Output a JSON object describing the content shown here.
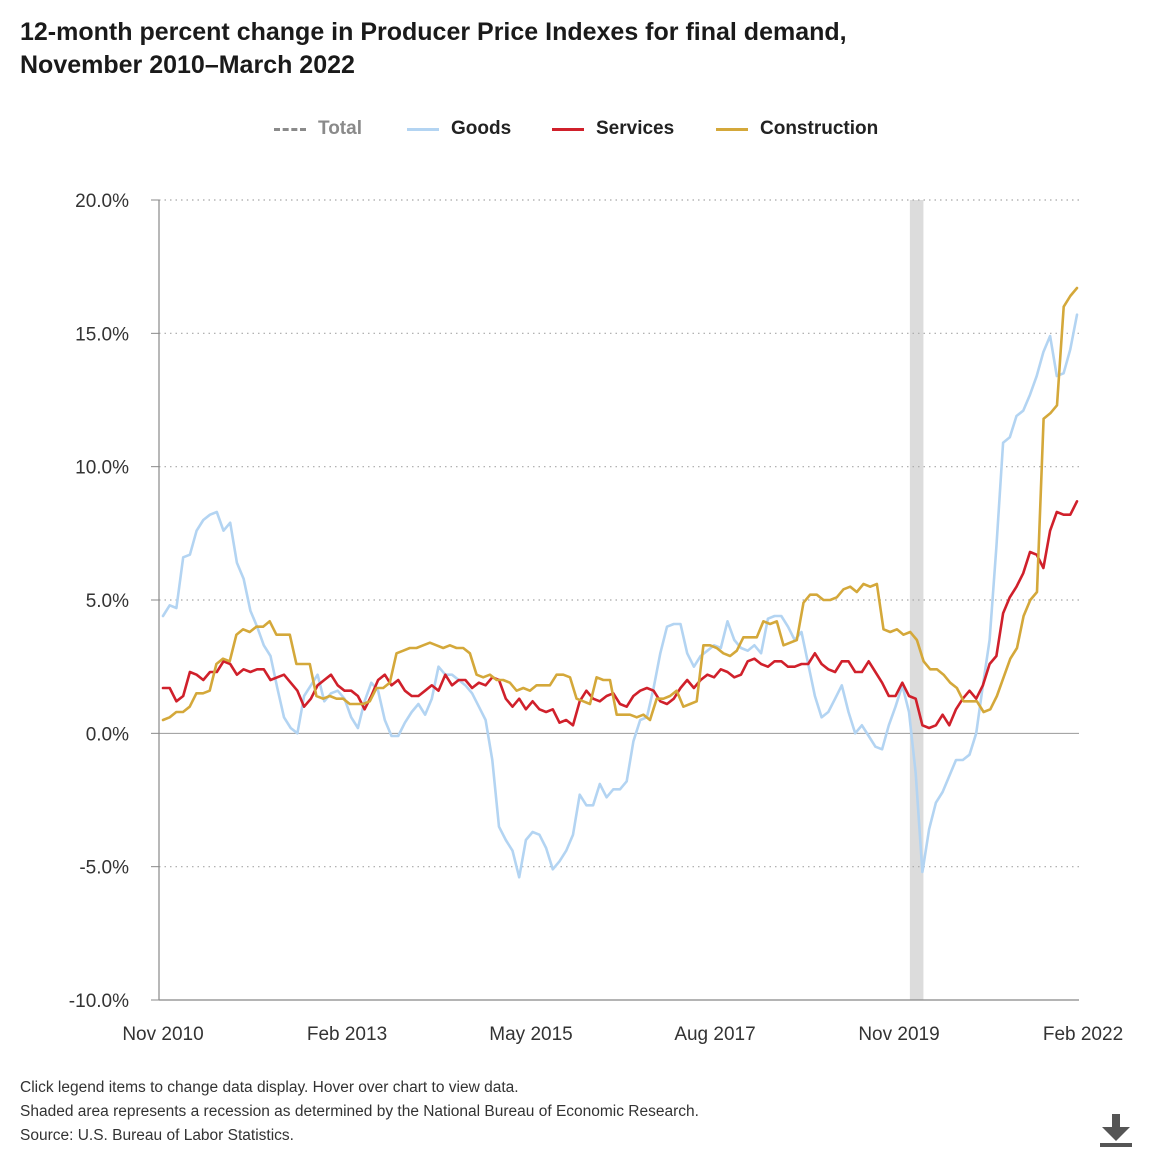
{
  "title_line1": "12-month percent change in Producer Price Indexes for final demand,",
  "title_line2": "November 2010–March 2022",
  "legend": [
    {
      "name": "Total",
      "color": "#8a8a8a",
      "dashed": true,
      "hidden": true
    },
    {
      "name": "Goods",
      "color": "#b3d4f2"
    },
    {
      "name": "Services",
      "color": "#d0202b"
    },
    {
      "name": "Construction",
      "color": "#d4a83a"
    }
  ],
  "notes": {
    "line1": "Click legend items to change data display. Hover over chart to view data.",
    "line2": "Shaded area represents a recession as determined by the National Bureau of Economic Research.",
    "line3": "Source: U.S. Bureau of Labor Statistics."
  },
  "icons": {
    "download": "download-icon"
  },
  "chart_data": {
    "type": "line",
    "x_start": "2010-11",
    "x_end": "2022-03",
    "x_ticks": [
      "Nov 2010",
      "Feb 2013",
      "May 2015",
      "Aug 2017",
      "Nov 2019",
      "Feb 2022"
    ],
    "y_ticks": [
      "20.0%",
      "15.0%",
      "10.0%",
      "5.0%",
      "0.0%",
      "-5.0%",
      "-10.0%"
    ],
    "ylim": [
      -10,
      20
    ],
    "grid": "horizontal dotted",
    "legend_position": "top",
    "recession": {
      "start": "2020-02",
      "end": "2020-04"
    },
    "series": [
      {
        "name": "Goods",
        "color": "#b3d4f2",
        "values": [
          4.4,
          4.8,
          4.7,
          6.6,
          6.7,
          7.6,
          8.0,
          8.2,
          8.3,
          7.6,
          7.9,
          6.4,
          5.8,
          4.6,
          4.0,
          3.3,
          2.9,
          1.7,
          0.6,
          0.2,
          0.0,
          1.4,
          1.8,
          2.2,
          1.2,
          1.5,
          1.6,
          1.3,
          0.6,
          0.2,
          1.2,
          1.9,
          1.6,
          0.5,
          -0.1,
          -0.1,
          0.4,
          0.8,
          1.1,
          0.7,
          1.3,
          2.5,
          2.2,
          2.2,
          2.0,
          1.8,
          1.5,
          1.0,
          0.5,
          -1.0,
          -3.5,
          -4.0,
          -4.4,
          -5.4,
          -4.0,
          -3.7,
          -3.8,
          -4.3,
          -5.1,
          -4.8,
          -4.4,
          -3.8,
          -2.3,
          -2.7,
          -2.7,
          -1.9,
          -2.4,
          -2.1,
          -2.1,
          -1.8,
          -0.3,
          0.5,
          0.6,
          1.7,
          3.0,
          4.0,
          4.1,
          4.1,
          3.0,
          2.5,
          2.9,
          3.1,
          3.3,
          3.2,
          4.2,
          3.5,
          3.2,
          3.1,
          3.3,
          3.0,
          4.3,
          4.4,
          4.4,
          4.0,
          3.5,
          3.8,
          2.6,
          1.4,
          0.6,
          0.8,
          1.3,
          1.8,
          0.8,
          0.0,
          0.3,
          -0.1,
          -0.5,
          -0.6,
          0.3,
          1.0,
          1.8,
          0.8,
          -1.5,
          -5.2,
          -3.6,
          -2.6,
          -2.2,
          -1.6,
          -1.0,
          -1.0,
          -0.8,
          0.0,
          1.8,
          3.5,
          7.0,
          10.9,
          11.1,
          11.9,
          12.1,
          12.7,
          13.4,
          14.3,
          14.9,
          13.4,
          13.5,
          14.4,
          15.7
        ]
      },
      {
        "name": "Services",
        "color": "#d0202b",
        "values": [
          1.7,
          1.7,
          1.2,
          1.4,
          2.3,
          2.2,
          2.0,
          2.3,
          2.3,
          2.7,
          2.6,
          2.2,
          2.4,
          2.3,
          2.4,
          2.4,
          2.0,
          2.1,
          2.2,
          1.9,
          1.6,
          1.0,
          1.3,
          1.8,
          2.0,
          2.2,
          1.8,
          1.6,
          1.6,
          1.4,
          0.9,
          1.4,
          2.0,
          2.2,
          1.8,
          2.0,
          1.6,
          1.4,
          1.4,
          1.6,
          1.8,
          1.6,
          2.2,
          1.8,
          2.0,
          2.0,
          1.7,
          1.9,
          1.8,
          2.1,
          2.0,
          1.3,
          1.0,
          1.3,
          0.9,
          1.2,
          0.9,
          0.8,
          0.9,
          0.4,
          0.5,
          0.3,
          1.2,
          1.6,
          1.3,
          1.2,
          1.4,
          1.5,
          1.1,
          1.0,
          1.4,
          1.6,
          1.7,
          1.6,
          1.2,
          1.1,
          1.3,
          1.7,
          2.0,
          1.7,
          2.0,
          2.2,
          2.1,
          2.4,
          2.3,
          2.1,
          2.2,
          2.7,
          2.8,
          2.6,
          2.5,
          2.7,
          2.7,
          2.5,
          2.5,
          2.6,
          2.6,
          3.0,
          2.6,
          2.4,
          2.3,
          2.7,
          2.7,
          2.3,
          2.3,
          2.7,
          2.3,
          1.9,
          1.4,
          1.4,
          1.9,
          1.4,
          1.3,
          0.3,
          0.2,
          0.3,
          0.7,
          0.3,
          0.9,
          1.3,
          1.6,
          1.3,
          1.8,
          2.6,
          2.9,
          4.5,
          5.1,
          5.5,
          6.0,
          6.8,
          6.7,
          6.2,
          7.6,
          8.3,
          8.2,
          8.2,
          8.7
        ]
      },
      {
        "name": "Construction",
        "color": "#d4a83a",
        "values": [
          0.5,
          0.6,
          0.8,
          0.8,
          1.0,
          1.5,
          1.5,
          1.6,
          2.6,
          2.8,
          2.7,
          3.7,
          3.9,
          3.8,
          4.0,
          4.0,
          4.2,
          3.7,
          3.7,
          3.7,
          2.6,
          2.6,
          2.6,
          1.4,
          1.3,
          1.4,
          1.3,
          1.3,
          1.1,
          1.1,
          1.1,
          1.2,
          1.7,
          1.7,
          1.9,
          3.0,
          3.1,
          3.2,
          3.2,
          3.3,
          3.4,
          3.3,
          3.2,
          3.3,
          3.2,
          3.2,
          3.0,
          2.2,
          2.1,
          2.2,
          2.0,
          2.0,
          1.9,
          1.6,
          1.7,
          1.6,
          1.8,
          1.8,
          1.8,
          2.2,
          2.2,
          2.1,
          1.3,
          1.2,
          1.1,
          2.1,
          2.0,
          2.0,
          0.7,
          0.7,
          0.7,
          0.6,
          0.7,
          0.5,
          1.3,
          1.3,
          1.4,
          1.6,
          1.0,
          1.1,
          1.2,
          3.3,
          3.3,
          3.2,
          3.0,
          2.9,
          3.1,
          3.6,
          3.6,
          3.6,
          4.2,
          4.1,
          4.2,
          3.3,
          3.4,
          3.5,
          4.9,
          5.2,
          5.2,
          5.0,
          5.0,
          5.1,
          5.4,
          5.5,
          5.3,
          5.6,
          5.5,
          5.6,
          3.9,
          3.8,
          3.9,
          3.7,
          3.8,
          3.5,
          2.7,
          2.4,
          2.4,
          2.2,
          1.9,
          1.7,
          1.2,
          1.2,
          1.2,
          0.8,
          0.9,
          1.4,
          2.1,
          2.8,
          3.2,
          4.4,
          5.0,
          5.3,
          11.8,
          12.0,
          12.3,
          16.0,
          16.4,
          16.7
        ]
      }
    ]
  }
}
